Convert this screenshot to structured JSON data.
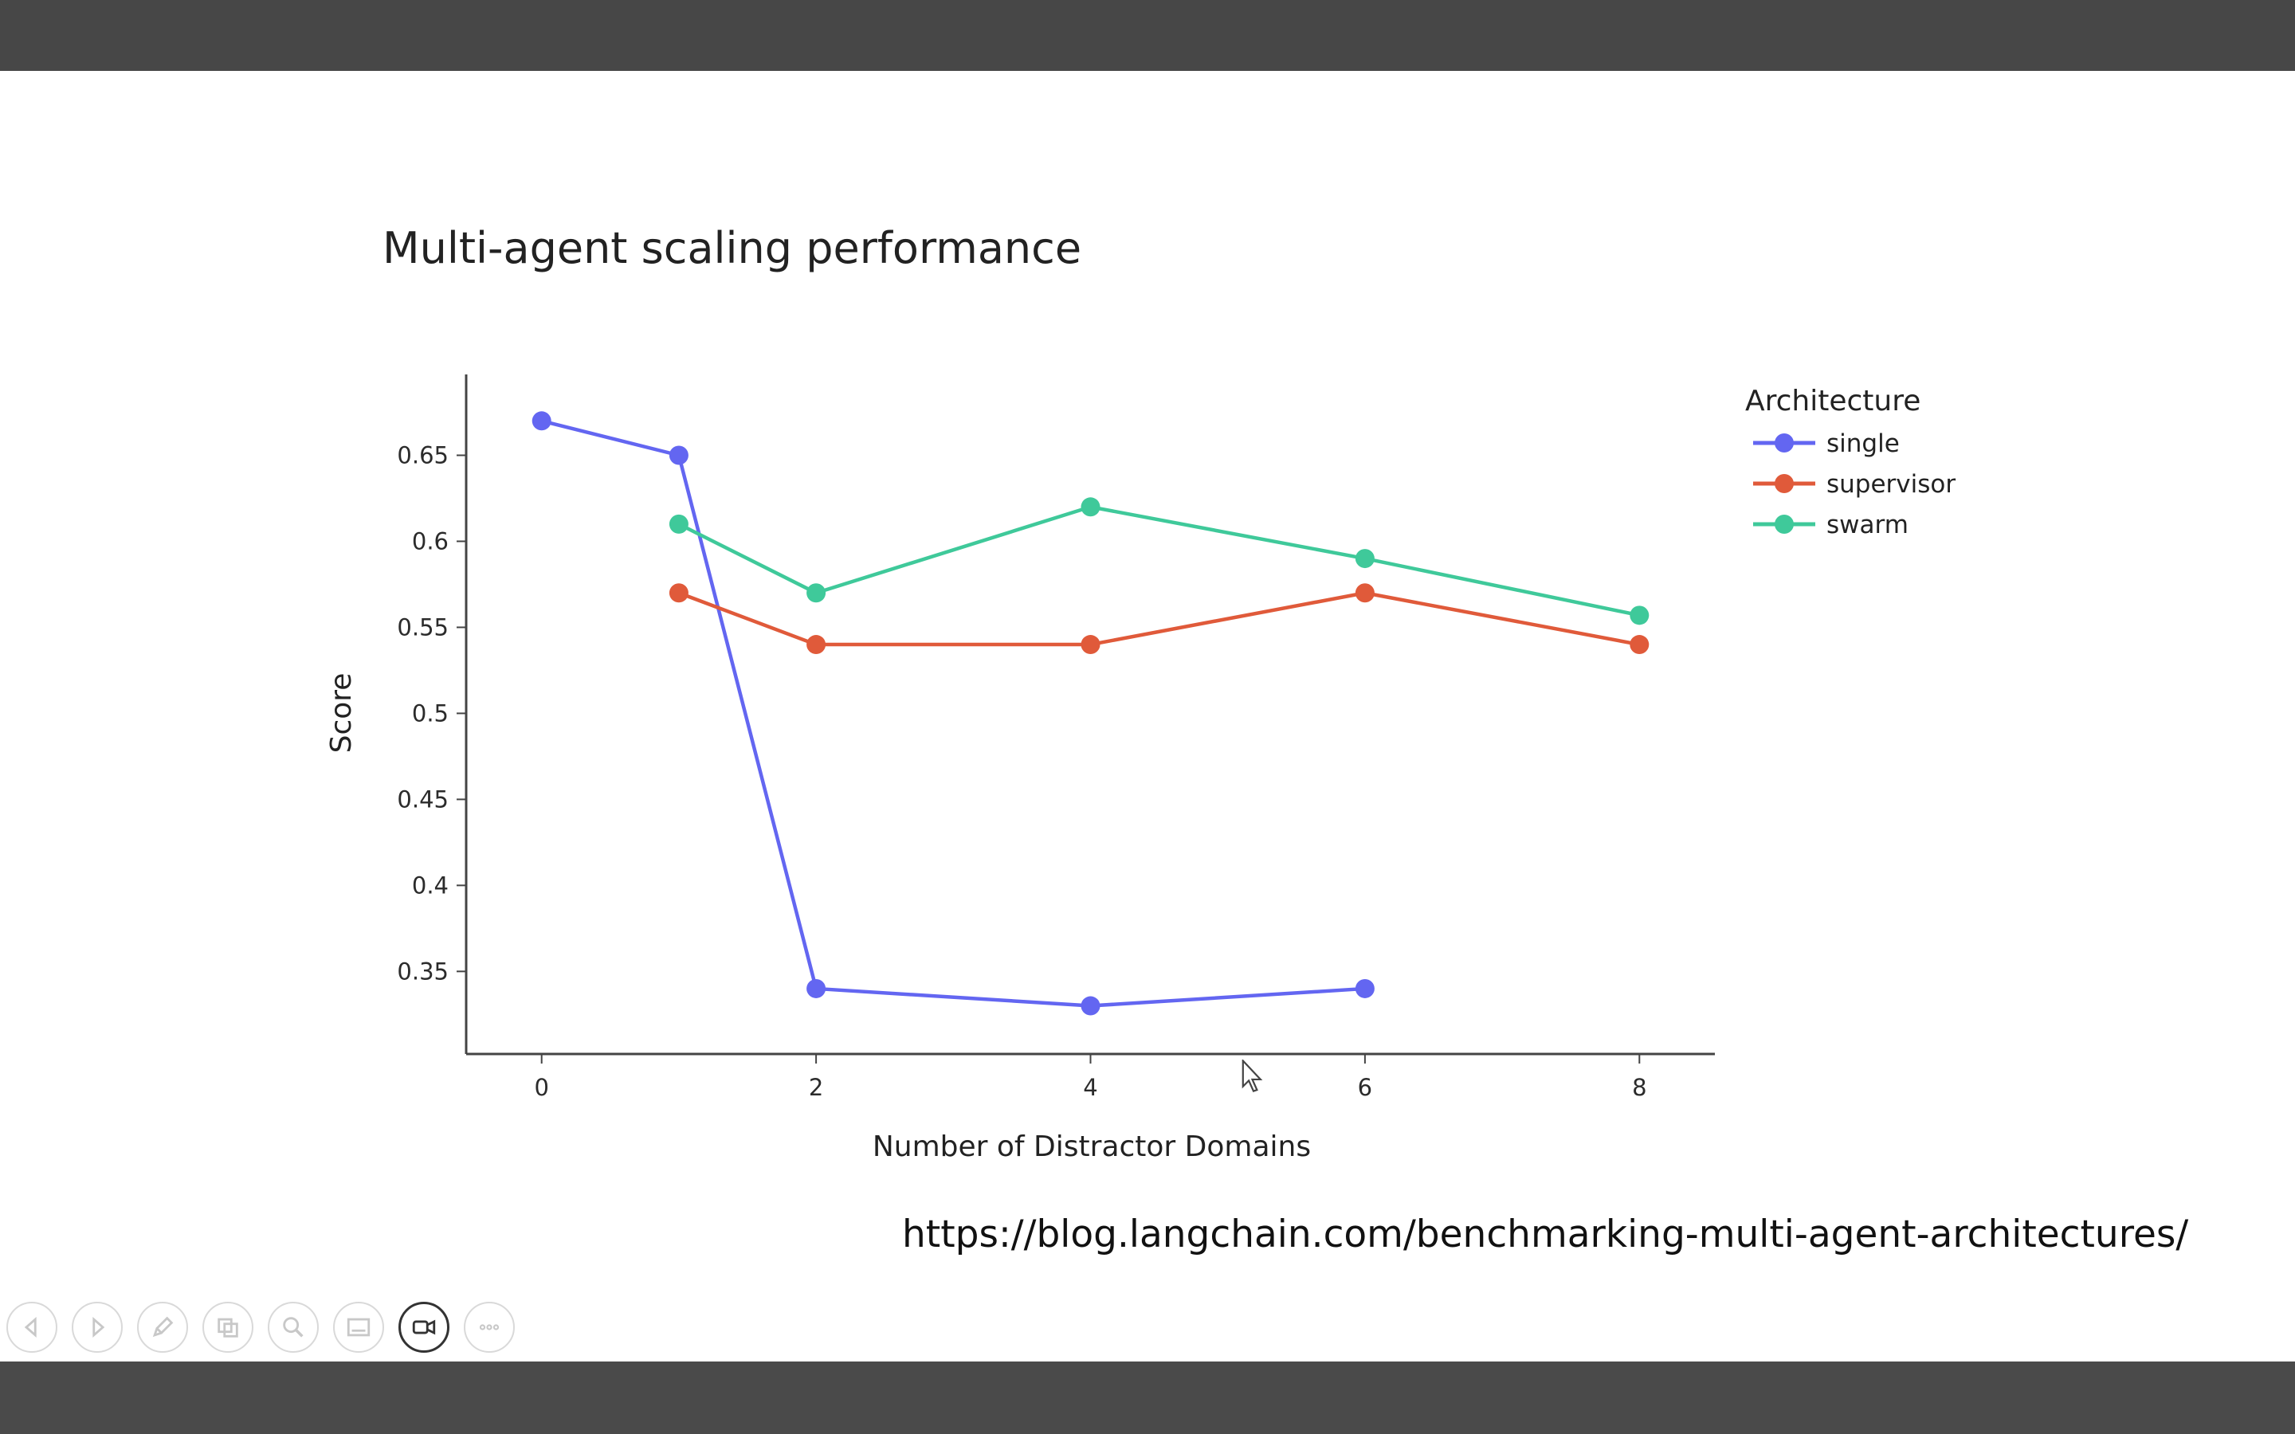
{
  "slide": {
    "url_text": "https://blog.langchain.com/benchmarking-multi-agent-architectures/"
  },
  "toolbar": {
    "buttons": [
      {
        "icon": "previous-icon",
        "active": false
      },
      {
        "icon": "next-icon",
        "active": false
      },
      {
        "icon": "pen-icon",
        "active": false
      },
      {
        "icon": "slides-icon",
        "active": false
      },
      {
        "icon": "zoom-icon",
        "active": false
      },
      {
        "icon": "subtitles-icon",
        "active": false
      },
      {
        "icon": "camera-icon",
        "active": true
      },
      {
        "icon": "more-icon",
        "active": false
      }
    ]
  },
  "chart_data": {
    "type": "line",
    "title": "Multi-agent scaling performance",
    "xlabel": "Number of Distractor Domains",
    "ylabel": "Score",
    "xlim": [
      -0.55,
      8.55
    ],
    "ylim": [
      0.302,
      0.697
    ],
    "xticks": [
      0,
      2,
      4,
      6,
      8
    ],
    "yticks": [
      0.35,
      0.4,
      0.45,
      0.5,
      0.55,
      0.6,
      0.65
    ],
    "ytick_labels": [
      "0.35",
      "0.4",
      "0.45",
      "0.5",
      "0.55",
      "0.6",
      "0.65"
    ],
    "grid": false,
    "legend": {
      "title": "Architecture",
      "placement": "top-right"
    },
    "series": [
      {
        "name": "single",
        "color": "#6366f1",
        "x": [
          0,
          1,
          2,
          4,
          6
        ],
        "y": [
          0.67,
          0.65,
          0.34,
          0.33,
          0.34
        ]
      },
      {
        "name": "supervisor",
        "color": "#e05a3a",
        "x": [
          1,
          2,
          4,
          6,
          8
        ],
        "y": [
          0.57,
          0.54,
          0.54,
          0.57,
          0.54
        ]
      },
      {
        "name": "swarm",
        "color": "#3fc99a",
        "x": [
          1,
          2,
          4,
          6,
          8
        ],
        "y": [
          0.61,
          0.57,
          0.62,
          0.59,
          0.557
        ]
      }
    ]
  }
}
